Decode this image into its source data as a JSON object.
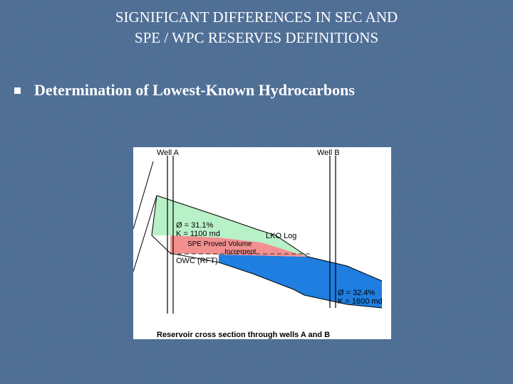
{
  "slide": {
    "title_line1": "SIGNIFICANT DIFFERENCES IN SEC AND",
    "title_line2": "SPE / WPC RESERVES DEFINITIONS",
    "bullet": "Determination of Lowest-Known Hydrocarbons"
  },
  "diagram": {
    "well_a": "Well A",
    "well_b": "Well B",
    "porosity_a": "Ø = 31.1%",
    "perm_a": "K = 1100 md",
    "lko_log": "LKO Log",
    "spe_line1": "SPE Proved Volume",
    "spe_line2": "Increment",
    "owc": "OWC (RFT)",
    "porosity_b": "Ø = 32.4%",
    "perm_b": "K = 1600 md",
    "caption": "Reservoir cross section through wells A and B"
  },
  "colors": {
    "background": "#4f6f96",
    "gas_zone": "#b8f0c8",
    "spe_increment": "#f29090",
    "water_zone": "#1f7ee0"
  }
}
